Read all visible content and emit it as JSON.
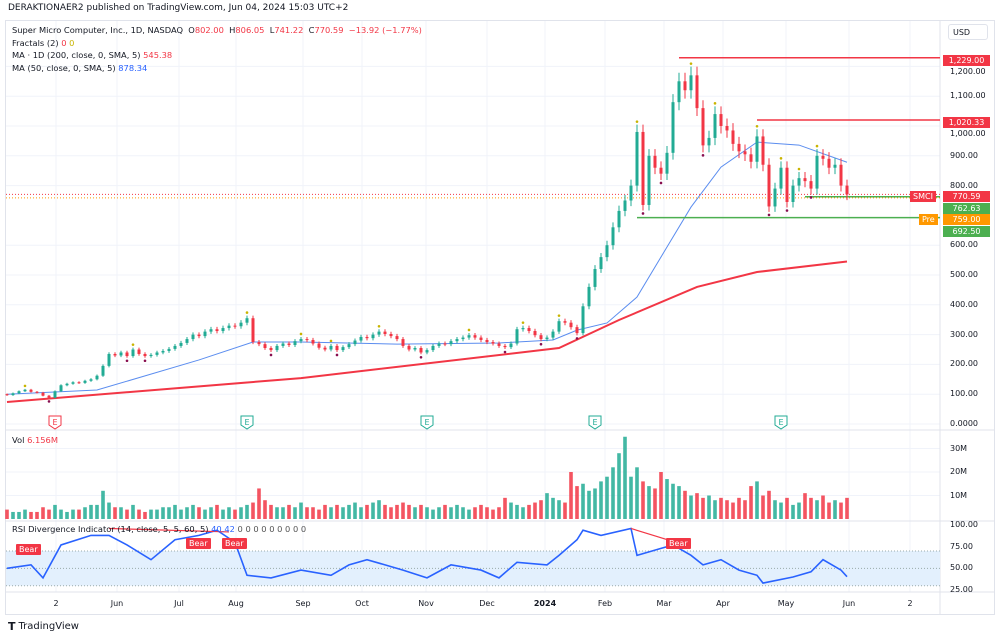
{
  "publisher": "DERAKTIONAER2 published on TradingView.com, Jun 04, 2024 15:03 UTC+2",
  "legend": {
    "symbol": "Super Micro Computer, Inc., 1D, NASDAQ",
    "o_label": "O",
    "o": "802.00",
    "h_label": "H",
    "h": "806.05",
    "l_label": "L",
    "l": "741.22",
    "c_label": "C",
    "c": "770.59",
    "change": "−13.92 (−1.77%)",
    "fractals": "Fractals (2)",
    "fractals_v1": "0",
    "fractals_v2": "0",
    "ma200": "MA · 1D (200, close, 0, SMA, 5)",
    "ma200_value": "545.38",
    "ma50": "MA (50, close, 0, SMA, 5)",
    "ma50_value": "878.34"
  },
  "currency": "USD",
  "volume_legend": {
    "label": "Vol",
    "value": "6.156M"
  },
  "rsi_legend": {
    "label": "RSI Divergence Indicator (14, close, 5, 5, 60, 5)",
    "value": "40.42",
    "zeros": "0 0 0 0 0 0 0 0 0"
  },
  "bear_label": "Bear",
  "price_labels": {
    "resistance_high": "1,229.00",
    "resistance_mid": "1,020.33",
    "symbol_tag": "SMCI",
    "last": "770.59",
    "support_near": "762.63",
    "pre_tag": "Pre",
    "pre": "759.00",
    "support_low": "692.50"
  },
  "branding": "TradingView",
  "colors": {
    "up": "#22ab94",
    "down": "#f23645",
    "ma50": "#5b8def",
    "ma200": "#f23645",
    "pre": "#ff9800",
    "support": "#4caf50",
    "rsi": "#2962ff"
  },
  "chart_data": [
    {
      "type": "candlestick",
      "title": "Super Micro Computer, Inc., 1D, NASDAQ",
      "ylim": [
        0,
        1250
      ],
      "price_ticks": [
        "1,200.00",
        "1,100.00",
        "1,000.00",
        "900.00",
        "800.00",
        "600.00",
        "500.00",
        "400.00",
        "300.00",
        "200.00",
        "100.00",
        "0.0000"
      ],
      "x_tick_labels": [
        "2",
        "Jun",
        "Jul",
        "Aug",
        "Sep",
        "Oct",
        "Nov",
        "Dec",
        "2024",
        "Feb",
        "Mar",
        "Apr",
        "May",
        "Jun",
        "2"
      ],
      "close": [
        97,
        103,
        110,
        115,
        108,
        105,
        95,
        88,
        110,
        130,
        135,
        140,
        138,
        145,
        150,
        162,
        195,
        235,
        230,
        240,
        228,
        250,
        235,
        228,
        232,
        240,
        245,
        252,
        262,
        272,
        285,
        300,
        295,
        310,
        318,
        312,
        322,
        330,
        328,
        340,
        355,
        275,
        268,
        255,
        248,
        262,
        270,
        265,
        278,
        285,
        282,
        270,
        256,
        250,
        262,
        248,
        258,
        268,
        280,
        292,
        288,
        300,
        310,
        302,
        295,
        285,
        262,
        250,
        255,
        240,
        248,
        262,
        270,
        268,
        278,
        285,
        290,
        298,
        290,
        282,
        275,
        270,
        262,
        258,
        270,
        318,
        322,
        312,
        298,
        285,
        290,
        310,
        345,
        340,
        325,
        305,
        395,
        460,
        520,
        560,
        600,
        660,
        715,
        750,
        800,
        980,
        735,
        900,
        860,
        840,
        910,
        1080,
        1150,
        1120,
        1170,
        1060,
        935,
        960,
        1040,
        1000,
        985,
        940,
        915,
        905,
        880,
        965,
        870,
        730,
        790,
        860,
        745,
        800,
        825,
        815,
        790,
        900,
        890,
        860,
        870,
        800,
        770.59
      ],
      "ma50_points": [
        [
          0,
          100
        ],
        [
          15,
          114
        ],
        [
          32,
          215
        ],
        [
          41,
          275
        ],
        [
          49,
          275
        ],
        [
          65,
          268
        ],
        [
          82,
          272
        ],
        [
          91,
          282
        ],
        [
          95,
          315
        ],
        [
          100,
          339
        ],
        [
          105,
          426
        ],
        [
          110,
          594
        ],
        [
          114,
          728
        ],
        [
          119,
          862
        ],
        [
          125,
          946
        ],
        [
          132,
          936
        ],
        [
          140,
          878.34
        ]
      ],
      "ma200_points": [
        [
          0,
          74
        ],
        [
          49,
          154
        ],
        [
          92,
          255
        ],
        [
          102,
          349
        ],
        [
          115,
          460
        ],
        [
          125,
          510
        ],
        [
          140,
          545.38
        ]
      ],
      "levels": [
        {
          "value": 1229.0,
          "from_bar": 112,
          "color": "#f23645"
        },
        {
          "value": 1020.33,
          "from_bar": 125,
          "color": "#f23645"
        },
        {
          "value": 762.63,
          "from_bar": 133,
          "color": "#4caf50"
        },
        {
          "value": 692.5,
          "from_bar": 105,
          "color": "#4caf50"
        }
      ],
      "earnings_bars": [
        8,
        40,
        70,
        98,
        129
      ],
      "earnings_label": "E"
    },
    {
      "type": "bar",
      "title": "Vol",
      "unit": "M",
      "ylim": [
        0,
        38
      ],
      "ticks": [
        "30M",
        "20M",
        "10M"
      ],
      "values": [
        4,
        3,
        3,
        4,
        3,
        3,
        5,
        4,
        6,
        4,
        3,
        4,
        4,
        5,
        6,
        6,
        12,
        7,
        5,
        5,
        4,
        6,
        4,
        3,
        4,
        4,
        5,
        5,
        6,
        4,
        5,
        6,
        5,
        4,
        5,
        6,
        4,
        5,
        4,
        5,
        6,
        7,
        13,
        8,
        6,
        5,
        5,
        6,
        5,
        7,
        5,
        5,
        4,
        6,
        5,
        6,
        5,
        6,
        7,
        5,
        6,
        7,
        8,
        6,
        5,
        6,
        7,
        6,
        5,
        6,
        5,
        4,
        5,
        6,
        5,
        6,
        5,
        4,
        5,
        6,
        5,
        4,
        5,
        9,
        7,
        6,
        5,
        6,
        7,
        8,
        11,
        9,
        8,
        7,
        20,
        14,
        15,
        12,
        13,
        16,
        18,
        22,
        28,
        35,
        18,
        22,
        16,
        14,
        13,
        20,
        17,
        15,
        14,
        12,
        10,
        11,
        9,
        10,
        8,
        9,
        8,
        7,
        9,
        8,
        14,
        16,
        10,
        12,
        8,
        7,
        9,
        6,
        7,
        11,
        9,
        8,
        10,
        7,
        8,
        7,
        9,
        6.156
      ]
    },
    {
      "type": "line",
      "title": "RSI Divergence Indicator",
      "ylim": [
        25,
        100
      ],
      "ticks": [
        "100.00",
        "75.00",
        "50.00",
        "25.00"
      ],
      "band": [
        30,
        70
      ],
      "points": [
        [
          0,
          50
        ],
        [
          4,
          54
        ],
        [
          6,
          39
        ],
        [
          9,
          77
        ],
        [
          14,
          88
        ],
        [
          17,
          88
        ],
        [
          20,
          77
        ],
        [
          24,
          60
        ],
        [
          28,
          83
        ],
        [
          32,
          88
        ],
        [
          35,
          94
        ],
        [
          38,
          80
        ],
        [
          40,
          42
        ],
        [
          44,
          39
        ],
        [
          49,
          48
        ],
        [
          54,
          42
        ],
        [
          57,
          54
        ],
        [
          60,
          60
        ],
        [
          66,
          48
        ],
        [
          70,
          39
        ],
        [
          74,
          54
        ],
        [
          79,
          48
        ],
        [
          82,
          39
        ],
        [
          85,
          57
        ],
        [
          90,
          54
        ],
        [
          92,
          65
        ],
        [
          95,
          83
        ],
        [
          96,
          94
        ],
        [
          99,
          88
        ],
        [
          104,
          96
        ],
        [
          105,
          65
        ],
        [
          109,
          73
        ],
        [
          111,
          77
        ],
        [
          114,
          65
        ],
        [
          116,
          54
        ],
        [
          119,
          60
        ],
        [
          122,
          48
        ],
        [
          125,
          42
        ],
        [
          126,
          33
        ],
        [
          131,
          40
        ],
        [
          134,
          46
        ],
        [
          136,
          60
        ],
        [
          139,
          48
        ],
        [
          140,
          40.42
        ]
      ],
      "divergences": [
        {
          "from": [
            17,
            96
          ],
          "to": [
            37,
            92
          ]
        },
        {
          "from": [
            104,
            96
          ],
          "to": [
            111,
            81
          ]
        }
      ]
    }
  ]
}
